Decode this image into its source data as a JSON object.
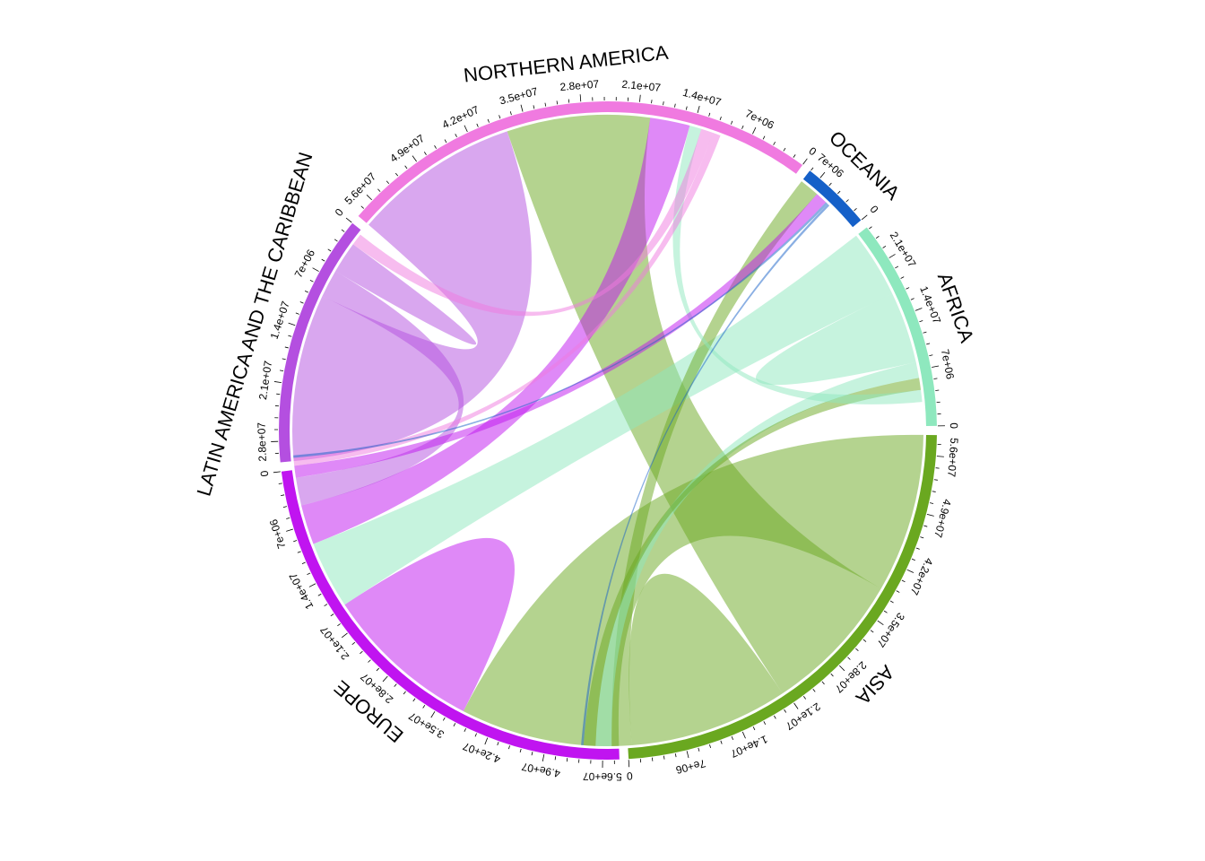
{
  "chart_data": {
    "type": "chord",
    "title": "",
    "sectors": [
      {
        "name": "ASIA",
        "color": "#6aa820",
        "total": 58500000,
        "ticks": [
          0,
          7000000,
          14000000,
          21000000,
          28000000,
          35000000,
          42000000,
          49000000,
          56000000
        ],
        "tick_labels": [
          "0",
          "7e+06",
          "1.4e+07",
          "2.1e+07",
          "2.8e+07",
          "3.5e+07",
          "4.2e+07",
          "4.9e+07",
          "5.6e+07"
        ]
      },
      {
        "name": "EUROPE",
        "color": "#c014f0",
        "total": 58000000,
        "ticks": [
          0,
          7000000,
          14000000,
          21000000,
          28000000,
          35000000,
          42000000,
          49000000,
          56000000
        ],
        "tick_labels": [
          "0",
          "7e+06",
          "1.4e+07",
          "2.1e+07",
          "2.8e+07",
          "3.5e+07",
          "4.2e+07",
          "4.9e+07",
          "5.6e+07"
        ]
      },
      {
        "name": "LATIN AMERICA AND THE CARIBBEAN",
        "color": "#b44fe0",
        "total": 30500000,
        "ticks": [
          0,
          7000000,
          14000000,
          21000000,
          28000000
        ],
        "tick_labels": [
          "0",
          "7e+06",
          "1.4e+07",
          "2.1e+07",
          "2.8e+07"
        ]
      },
      {
        "name": "NORTHERN AMERICA",
        "color": "#f07ae0",
        "total": 58500000,
        "ticks": [
          0,
          7000000,
          14000000,
          21000000,
          28000000,
          35000000,
          42000000,
          49000000,
          56000000
        ],
        "tick_labels": [
          "0",
          "7e+06",
          "1.4e+07",
          "2.1e+07",
          "2.8e+07",
          "3.5e+07",
          "4.2e+07",
          "4.9e+07",
          "5.6e+07"
        ]
      },
      {
        "name": "OCEANIA",
        "color": "#1560c8",
        "total": 8500000,
        "ticks": [
          0,
          7000000
        ],
        "tick_labels": [
          "0",
          "7e+06"
        ]
      },
      {
        "name": "AFRICA",
        "color": "#8ee8be",
        "total": 25500000,
        "ticks": [
          0,
          7000000,
          14000000,
          21000000
        ],
        "tick_labels": [
          "0",
          "7e+06",
          "1.4e+07",
          "2.1e+07"
        ]
      }
    ],
    "links": [
      {
        "from": "ASIA",
        "to": "NORTHERN AMERICA",
        "value": 18000000
      },
      {
        "from": "ASIA",
        "to": "EUROPE",
        "value": 20000000
      },
      {
        "from": "ASIA",
        "to": "ASIA",
        "value": 10000000
      },
      {
        "from": "ASIA",
        "to": "AFRICA",
        "value": 1500000
      },
      {
        "from": "ASIA",
        "to": "OCEANIA",
        "value": 2500000
      },
      {
        "from": "AFRICA",
        "to": "EUROPE",
        "value": 8500000
      },
      {
        "from": "AFRICA",
        "to": "AFRICA",
        "value": 4500000
      },
      {
        "from": "AFRICA",
        "to": "ASIA",
        "value": 2000000
      },
      {
        "from": "AFRICA",
        "to": "NORTHERN AMERICA",
        "value": 1500000
      },
      {
        "from": "EUROPE",
        "to": "NORTHERN AMERICA",
        "value": 5000000
      },
      {
        "from": "EUROPE",
        "to": "EUROPE",
        "value": 10000000
      },
      {
        "from": "EUROPE",
        "to": "OCEANIA",
        "value": 1500000
      },
      {
        "from": "LATIN AMERICA AND THE CARIBBEAN",
        "to": "NORTHERN AMERICA",
        "value": 21000000
      },
      {
        "from": "LATIN AMERICA AND THE CARIBBEAN",
        "to": "EUROPE",
        "value": 3500000
      },
      {
        "from": "LATIN AMERICA AND THE CARIBBEAN",
        "to": "LATIN AMERICA AND THE CARIBBEAN",
        "value": 2000000
      },
      {
        "from": "NORTHERN AMERICA",
        "to": "EUROPE",
        "value": 1000000
      },
      {
        "from": "NORTHERN AMERICA",
        "to": "LATIN AMERICA AND THE CARIBBEAN",
        "value": 1500000
      },
      {
        "from": "OCEANIA",
        "to": "EUROPE",
        "value": 300000
      },
      {
        "from": "OCEANIA",
        "to": "ASIA",
        "value": 300000
      }
    ],
    "link_color_by": "from",
    "legend": "none",
    "grid": false
  }
}
